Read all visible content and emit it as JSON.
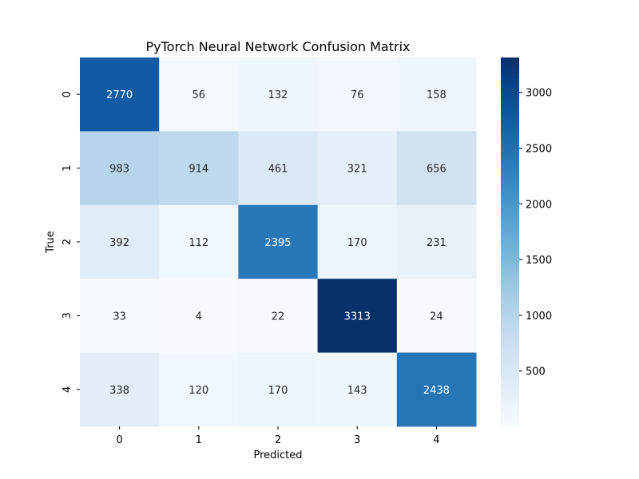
{
  "chart_data": {
    "type": "heatmap",
    "title": "PyTorch Neural Network Confusion Matrix",
    "xlabel": "Predicted",
    "ylabel": "True",
    "x_categories": [
      "0",
      "1",
      "2",
      "3",
      "4"
    ],
    "y_categories": [
      "0",
      "1",
      "2",
      "3",
      "4"
    ],
    "values": [
      [
        2770,
        56,
        132,
        76,
        158
      ],
      [
        983,
        914,
        461,
        321,
        656
      ],
      [
        392,
        112,
        2395,
        170,
        231
      ],
      [
        33,
        4,
        22,
        3313,
        24
      ],
      [
        338,
        120,
        170,
        143,
        2438
      ]
    ],
    "colormap": "Blues",
    "colorbar": {
      "range": [
        4,
        3313
      ],
      "ticks": [
        500,
        1000,
        1500,
        2000,
        2500,
        3000
      ],
      "tick_labels": [
        "500",
        "1000",
        "1500",
        "2000",
        "2500",
        "3000"
      ]
    },
    "annotations": true,
    "grid": false,
    "colors": {
      "low": "#f7fbff",
      "high": "#08306b",
      "text_dark": "#262626",
      "text_light": "#ffffff"
    }
  }
}
